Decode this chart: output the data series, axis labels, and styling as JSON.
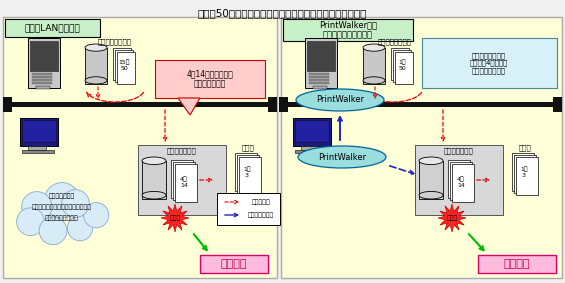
{
  "title": "（例）50ページの印刷途中でプリンタの電源が落ちた場合",
  "left_panel": {
    "label": "通常のLANプリンタ",
    "spool_label": "サーバのスプール",
    "pages_label": "15～\n50",
    "lost_label": "4～14ページのデー\nタが喪失する。",
    "queue_label": "プリンタの列り",
    "queue_pages": "4～\n14",
    "output_label": "紙出力",
    "output_pages": "1～\n3",
    "power_label": "電源断",
    "result_label": "継続不能",
    "cloud_lines": [
      "・ゴ印刷が発生",
      "・アプリケーションの再起動が必要",
      "・エラー詳報が不明"
    ]
  },
  "right_panel": {
    "label": "PrintWalker対応\nネットワークプリンタ",
    "spool_label": "サーバのスプール",
    "pages_label": "1～\n50",
    "note_label": "印刷完了ページを\n認識し、4ページ以\n降から印刷を再開",
    "pw_top_label": "PrintWalker",
    "pw_bottom_label": "PrintWalker",
    "queue_label": "プリンタの列り",
    "queue_pages": "4～\n14",
    "output_label": "紙出力",
    "output_pages": "1～\n3",
    "power_label": "電源断",
    "result_label": "印刷継続"
  },
  "legend": {
    "data_label": "印刷データ",
    "page_label": "印刷ページ情報"
  }
}
